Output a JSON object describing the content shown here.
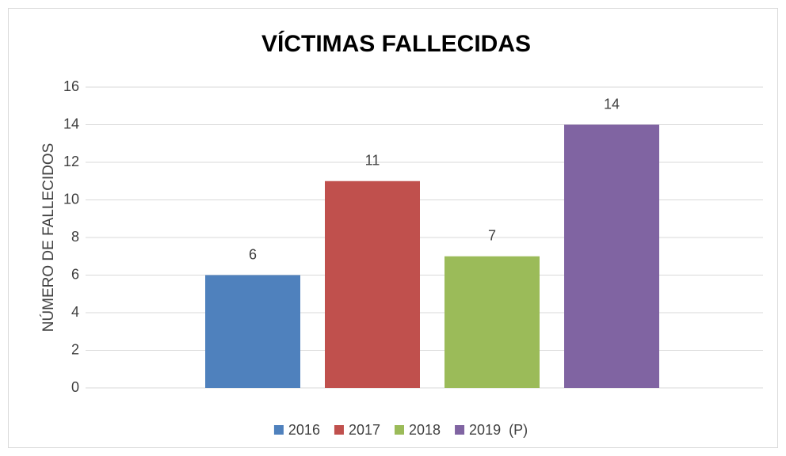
{
  "chart_data": {
    "type": "bar",
    "title": "VÍCTIMAS FALLECIDAS",
    "y_label": "NÚMERO DE FALLECIDOS",
    "categories": [
      null
    ],
    "series": [
      {
        "name": "2016",
        "color": "#4f81bd",
        "values": [
          6
        ]
      },
      {
        "name": "2017",
        "color": "#c0504d",
        "values": [
          11
        ]
      },
      {
        "name": "2018",
        "color": "#9bbb59",
        "values": [
          7
        ]
      },
      {
        "name": "2019  (P)",
        "color": "#8064a2",
        "values": [
          14
        ]
      }
    ],
    "ylim": [
      0,
      16
    ],
    "yticks": [
      0,
      2,
      4,
      6,
      8,
      10,
      12,
      14,
      16
    ],
    "grid": true,
    "legend": "bottom"
  }
}
